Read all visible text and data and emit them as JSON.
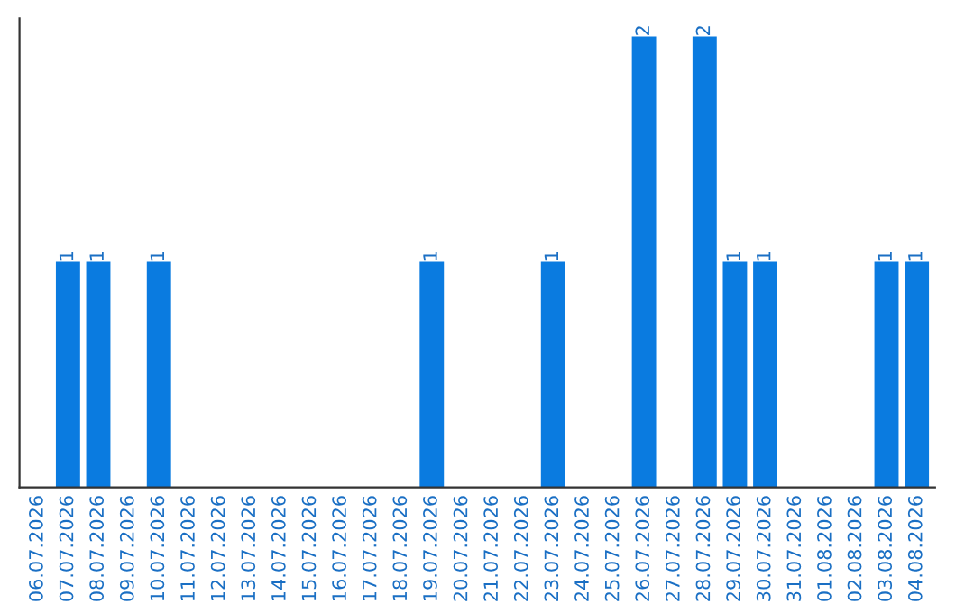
{
  "chart_data": {
    "type": "bar",
    "categories": [
      "06.07.2026",
      "07.07.2026",
      "08.07.2026",
      "09.07.2026",
      "10.07.2026",
      "11.07.2026",
      "12.07.2026",
      "13.07.2026",
      "14.07.2026",
      "15.07.2026",
      "16.07.2026",
      "17.07.2026",
      "18.07.2026",
      "19.07.2026",
      "20.07.2026",
      "21.07.2026",
      "22.07.2026",
      "23.07.2026",
      "24.07.2026",
      "25.07.2026",
      "26.07.2026",
      "27.07.2026",
      "28.07.2026",
      "29.07.2026",
      "30.07.2026",
      "31.07.2026",
      "01.08.2026",
      "02.08.2026",
      "03.08.2026",
      "04.08.2026"
    ],
    "values": [
      0,
      1,
      1,
      0,
      1,
      0,
      0,
      0,
      0,
      0,
      0,
      0,
      0,
      1,
      0,
      0,
      0,
      1,
      0,
      0,
      2,
      0,
      2,
      1,
      1,
      0,
      0,
      0,
      1,
      1
    ],
    "value_labels": [
      null,
      "1",
      "1",
      null,
      "1",
      null,
      null,
      null,
      null,
      null,
      null,
      null,
      null,
      "1",
      null,
      null,
      null,
      "1",
      null,
      null,
      "2",
      null,
      "2",
      "1",
      "1",
      null,
      null,
      null,
      "1",
      "1"
    ],
    "color": "#0a7be0",
    "tick_labels": "x",
    "grid": false,
    "legend": false
  }
}
